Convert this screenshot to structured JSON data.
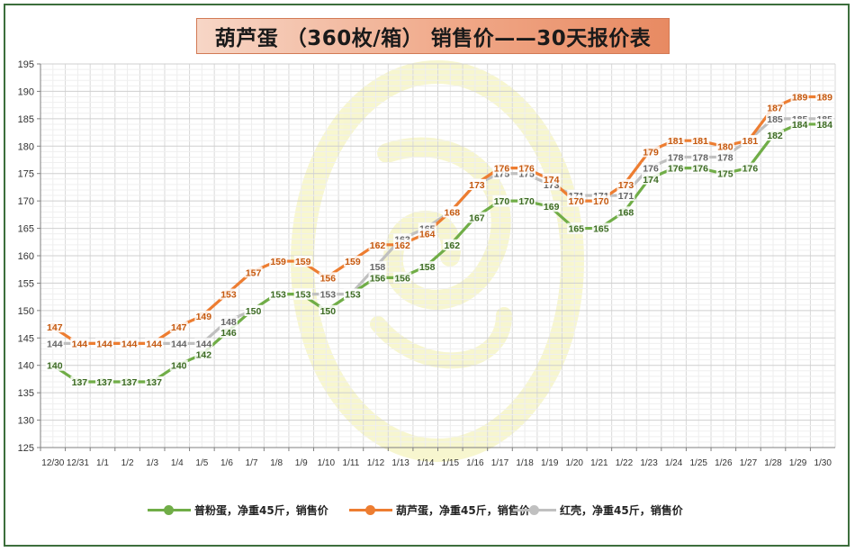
{
  "title": "葫芦蛋 （360枚/箱） 销售价——30天报价表",
  "colors": {
    "green": "#70ad47",
    "orange": "#ed7d31",
    "gray": "#c0c0c0",
    "watermark": "#f2f0a8"
  },
  "chart_data": {
    "type": "line",
    "x": [
      "12/30",
      "12/31",
      "1/1",
      "1/2",
      "1/3",
      "1/4",
      "1/5",
      "1/6",
      "1/7",
      "1/8",
      "1/9",
      "1/10",
      "1/11",
      "1/12",
      "1/13",
      "1/14",
      "1/15",
      "1/16",
      "1/17",
      "1/18",
      "1/19",
      "1/20",
      "1/21",
      "1/22",
      "1/23",
      "1/24",
      "1/25",
      "1/26",
      "1/27",
      "1/28",
      "1/29",
      "1/30"
    ],
    "ylim": [
      125,
      195
    ],
    "yticks": [
      125,
      130,
      135,
      140,
      145,
      150,
      155,
      160,
      165,
      170,
      175,
      180,
      185,
      190,
      195
    ],
    "grid": true,
    "legend_position": "bottom",
    "series": [
      {
        "name": "普粉蛋，净重45斤，销售价",
        "color": "#70ad47",
        "values": [
          140,
          137,
          137,
          137,
          137,
          140,
          142,
          146,
          150,
          153,
          153,
          150,
          153,
          156,
          156,
          158,
          162,
          167,
          170,
          170,
          169,
          165,
          165,
          168,
          174,
          176,
          176,
          175,
          176,
          182,
          184,
          184
        ]
      },
      {
        "name": "葫芦蛋，净重45斤，销售价",
        "color": "#ed7d31",
        "values": [
          147,
          144,
          144,
          144,
          144,
          147,
          149,
          153,
          157,
          159,
          159,
          156,
          159,
          162,
          162,
          164,
          168,
          173,
          176,
          176,
          174,
          170,
          170,
          173,
          179,
          181,
          181,
          180,
          181,
          187,
          189,
          189
        ]
      },
      {
        "name": "红壳，净重45斤，销售价",
        "color": "#c0c0c0",
        "values": [
          144,
          144,
          144,
          144,
          144,
          144,
          144,
          148,
          150,
          153,
          153,
          153,
          153,
          158,
          163,
          165,
          168,
          173,
          175,
          175,
          173,
          171,
          171,
          171,
          176,
          178,
          178,
          178,
          181,
          185,
          185,
          185
        ]
      }
    ]
  }
}
